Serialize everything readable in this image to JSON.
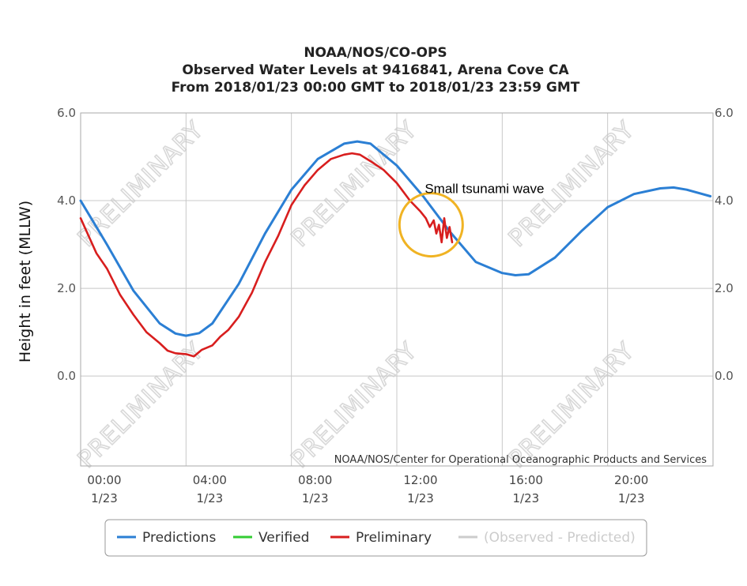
{
  "chart_data": {
    "type": "line",
    "title": [
      "NOAA/NOS/CO-OPS",
      "Observed Water Levels at 9416841, Arena Cove CA",
      "From 2018/01/23 00:00 GMT to 2018/01/23 23:59 GMT"
    ],
    "ylabel": "Height in feet (MLLW)",
    "ylim": [
      -2.05,
      6.0
    ],
    "xlim_hours": [
      0,
      24
    ],
    "y_ticks": [
      0.0,
      2.0,
      4.0,
      6.0
    ],
    "y_tick_labels": [
      "0.0",
      "2.0",
      "4.0",
      "6.0"
    ],
    "x_ticks_hours": [
      0,
      4,
      8,
      12,
      16,
      20
    ],
    "x_tick_labels_time": [
      "00:00",
      "04:00",
      "08:00",
      "12:00",
      "16:00",
      "20:00"
    ],
    "x_tick_labels_date": [
      "1/23",
      "1/23",
      "1/23",
      "1/23",
      "1/23",
      "1/23"
    ],
    "grid": true,
    "legend_position": "bottom",
    "series": [
      {
        "name": "Predictions",
        "color": "#2b7fd4",
        "x_hours": [
          0,
          1,
          2,
          3,
          3.6,
          4,
          4.5,
          5,
          6,
          7,
          8,
          9,
          10,
          10.5,
          11,
          12,
          13,
          14,
          15,
          16,
          16.5,
          17,
          18,
          19,
          20,
          21,
          22,
          22.5,
          23,
          23.9
        ],
        "values": [
          4.0,
          3.0,
          1.95,
          1.2,
          0.97,
          0.92,
          0.98,
          1.2,
          2.1,
          3.25,
          4.25,
          4.95,
          5.3,
          5.35,
          5.3,
          4.8,
          4.1,
          3.3,
          2.6,
          2.35,
          2.3,
          2.32,
          2.7,
          3.3,
          3.85,
          4.15,
          4.28,
          4.3,
          4.25,
          4.1
        ]
      },
      {
        "name": "Verified",
        "color": "#33cc33",
        "x_hours": [],
        "values": []
      },
      {
        "name": "Preliminary",
        "color": "#d81e1e",
        "x_hours": [
          0,
          0.3,
          0.6,
          1,
          1.5,
          2,
          2.5,
          3,
          3.3,
          3.6,
          4,
          4.3,
          4.6,
          5,
          5.3,
          5.6,
          6,
          6.5,
          7,
          7.5,
          8,
          8.5,
          9,
          9.5,
          10,
          10.3,
          10.6,
          11,
          11.5,
          12,
          12.5,
          12.9,
          13.1,
          13.25,
          13.4,
          13.5,
          13.6,
          13.7,
          13.8,
          13.9,
          14.0,
          14.1
        ],
        "values": [
          3.6,
          3.2,
          2.8,
          2.45,
          1.85,
          1.4,
          1.0,
          0.75,
          0.58,
          0.52,
          0.5,
          0.45,
          0.6,
          0.7,
          0.9,
          1.05,
          1.35,
          1.9,
          2.6,
          3.2,
          3.9,
          4.35,
          4.7,
          4.95,
          5.05,
          5.08,
          5.05,
          4.9,
          4.7,
          4.4,
          4.0,
          3.75,
          3.6,
          3.4,
          3.55,
          3.25,
          3.45,
          3.05,
          3.6,
          3.15,
          3.4,
          3.05
        ]
      },
      {
        "name": "(Observed - Predicted)",
        "color": "#cccccc",
        "x_hours": [],
        "values": []
      }
    ],
    "annotation": {
      "text": "Small tsunami wave",
      "x_hours": 13.3,
      "y": 3.45
    },
    "credit": "NOAA/NOS/Center for Operational Oceanographic Products and Services",
    "watermark": "PRELIMINARY"
  }
}
